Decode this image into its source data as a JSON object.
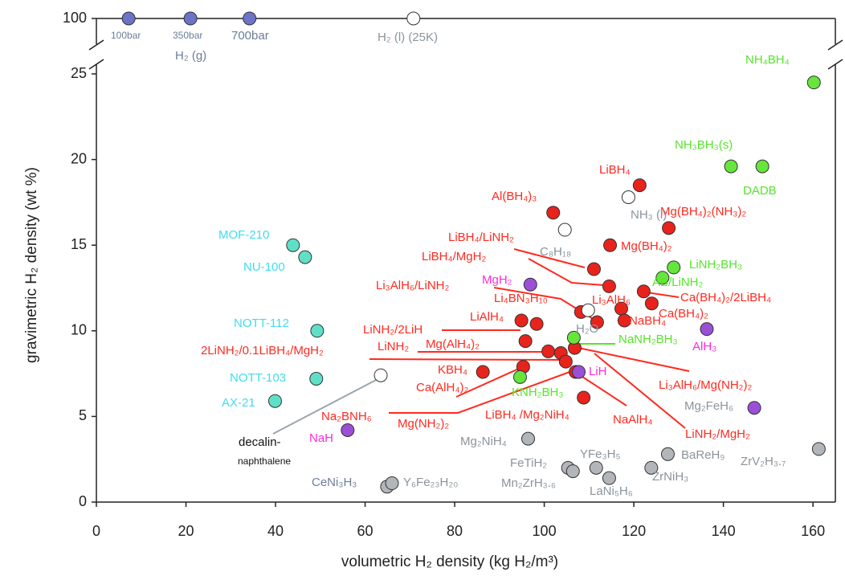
{
  "chart_data": {
    "type": "scatter",
    "xlabel": "volumetric H₂ density (kg H₂/m³)",
    "ylabel": "gravimetric H₂ density (wt %)",
    "xlim": [
      0,
      165
    ],
    "ylim": [
      0,
      100
    ],
    "ybreak": [
      25,
      100
    ],
    "xticks": [
      0,
      20,
      40,
      60,
      80,
      100,
      120,
      140,
      160
    ],
    "yticks": [
      0,
      5,
      10,
      15,
      20,
      25,
      100
    ],
    "series": [
      {
        "color": "#e8231c",
        "x": [
          102,
          121.3,
          127.8,
          114.7,
          111.1,
          114.5,
          122.2,
          124,
          117.2,
          111.8,
          117.9,
          108.2,
          94.9,
          98.3,
          95.8,
          100.9,
          103.7,
          104.8,
          106.8,
          95.3,
          86.3,
          107,
          108.8
        ],
        "values": [
          16.9,
          18.5,
          16,
          15,
          13.6,
          12.6,
          12.3,
          11.6,
          11.3,
          10.5,
          10.6,
          11.1,
          10.6,
          10.4,
          9.4,
          8.8,
          8.7,
          8.2,
          9,
          7.9,
          7.6,
          7.6,
          6.1
        ]
      },
      {
        "color": "#66e63a",
        "x": [
          160.2,
          141.7,
          148.7,
          128.9,
          126.4,
          106.6,
          94.6
        ],
        "values": [
          24.5,
          19.6,
          19.6,
          13.7,
          13.1,
          9.6,
          7.3
        ]
      },
      {
        "color": "#5fe0c6",
        "x": [
          43.9,
          46.6,
          49.3,
          49.1,
          39.9
        ],
        "values": [
          15,
          14.3,
          10,
          7.2,
          5.9
        ]
      },
      {
        "color": "#9b4fd6",
        "x": [
          96.9,
          136.3,
          107.7,
          146.9,
          56.1
        ],
        "values": [
          12.7,
          10.1,
          7.6,
          5.5,
          4.2
        ]
      },
      {
        "color": "#b2b6ba",
        "x": [
          96.4,
          105.3,
          106.4,
          111.6,
          114.5,
          123.9,
          127.6,
          161.3,
          64.9,
          66
        ],
        "values": [
          3.7,
          2,
          1.8,
          2,
          1.4,
          2,
          2.8,
          3.1,
          0.9,
          1.1
        ]
      },
      {
        "color": "#ffffff",
        "x": [
          118.8,
          104.6,
          109.8,
          63.5,
          70.8
        ],
        "values": [
          17.8,
          15.9,
          11.2,
          7.4,
          100
        ]
      },
      {
        "color": "#6c74c8",
        "x": [
          7.2,
          21,
          34.2
        ],
        "values": [
          100,
          100,
          100
        ]
      }
    ],
    "annotations": [
      {
        "text": "Al(BH₄)₃",
        "color": "#ff2a1f"
      },
      {
        "text": "LiBH₄",
        "color": "#ff2a1f"
      },
      {
        "text": "Mg(BH₄)₂(NH₃)₂",
        "color": "#ff2a1f"
      },
      {
        "text": "Mg(BH₄)₂",
        "color": "#ff2a1f"
      },
      {
        "text": "LiBH₄/LiNH₂",
        "color": "#ff2a1f"
      },
      {
        "text": "LiBH₄/MgH₂",
        "color": "#ff2a1f"
      },
      {
        "text": "Li₃AlH₆/LiNH₂",
        "color": "#ff2a1f"
      },
      {
        "text": "Li₄BN₃H₁₀",
        "color": "#ff2a1f"
      },
      {
        "text": "Li₃AlH₆",
        "color": "#ff2a1f"
      },
      {
        "text": "NaBH₄",
        "color": "#ff2a1f"
      },
      {
        "text": "Ca(BH₄)₂/2LiBH₄",
        "color": "#ff2a1f"
      },
      {
        "text": "Ca(BH₄)₂",
        "color": "#ff2a1f"
      },
      {
        "text": "LiAlH₄",
        "color": "#ff2a1f"
      },
      {
        "text": "LiNH₂/2LiH",
        "color": "#ff2a1f"
      },
      {
        "text": "2LiNH₂/0.1LiBH₄/MgH₂",
        "color": "#ff2a1f"
      },
      {
        "text": "LiNH₂",
        "color": "#ff2a1f"
      },
      {
        "text": "Mg(AlH₄)₂",
        "color": "#ff2a1f"
      },
      {
        "text": "KBH₄",
        "color": "#ff2a1f"
      },
      {
        "text": "Ca(AlH₄)₂",
        "color": "#ff2a1f"
      },
      {
        "text": "Na₂BNH₆",
        "color": "#ff2a1f"
      },
      {
        "text": "Mg(NH₂)₂",
        "color": "#ff2a1f"
      },
      {
        "text": "LiBH₄ /Mg₂NiH₄",
        "color": "#ff2a1f"
      },
      {
        "text": "NaAlH₄",
        "color": "#ff2a1f"
      },
      {
        "text": "Li₃AlH₆/Mg(NH₂)₂",
        "color": "#ff2a1f"
      },
      {
        "text": "LiNH₂/MgH₂",
        "color": "#ff2a1f"
      },
      {
        "text": "NH₄BH₄",
        "color": "#55e52a"
      },
      {
        "text": "NH₃BH₃(s)",
        "color": "#55e52a"
      },
      {
        "text": "DADB",
        "color": "#55e52a"
      },
      {
        "text": "LiNH₂BH₃",
        "color": "#55e52a"
      },
      {
        "text": "AB/LiNH₂",
        "color": "#55e52a"
      },
      {
        "text": "NaNH₂BH₃",
        "color": "#55e52a"
      },
      {
        "text": "KNH₂BH₃",
        "color": "#55e52a"
      },
      {
        "text": "MOF-210",
        "color": "#3fdcf0"
      },
      {
        "text": "NU-100",
        "color": "#3fdcf0"
      },
      {
        "text": "NOTT-112",
        "color": "#3fdcf0"
      },
      {
        "text": "NOTT-103",
        "color": "#3fdcf0"
      },
      {
        "text": "AX-21",
        "color": "#3fdcf0"
      },
      {
        "text": "MgH₂",
        "color": "#ff2ad8"
      },
      {
        "text": "AlH₃",
        "color": "#ff2ad8"
      },
      {
        "text": "LiH",
        "color": "#ff2ad8"
      },
      {
        "text": "NaH",
        "color": "#ff2ad8"
      },
      {
        "text": "C₈H₁₈",
        "color": "#8a949c"
      },
      {
        "text": "NH₃ (l)",
        "color": "#8a949c"
      },
      {
        "text": "H₂O",
        "color": "#8a949c"
      },
      {
        "text": "Mg₂FeH₆",
        "color": "#8a949c"
      },
      {
        "text": "Mg₂NiH₄",
        "color": "#8a949c"
      },
      {
        "text": "FeTiH₂",
        "color": "#8a949c"
      },
      {
        "text": "YFe₃H₅",
        "color": "#8a949c"
      },
      {
        "text": "Mn₂ZrH₃.₆",
        "color": "#8a949c"
      },
      {
        "text": "LaNi₅H₆",
        "color": "#8a949c"
      },
      {
        "text": "ZrNiH₃",
        "color": "#8a949c"
      },
      {
        "text": "BaReH₉",
        "color": "#8a949c"
      },
      {
        "text": "ZrV₂H₃.₇",
        "color": "#8a949c"
      },
      {
        "text": "CeNi₃H₃",
        "color": "#6b7d99"
      },
      {
        "text": "Y₆Fe₂₃H₂₀",
        "color": "#8a949c"
      },
      {
        "text": "decalin-",
        "color": "#111111"
      },
      {
        "text": "naphthalene",
        "color": "#111111"
      },
      {
        "text": "100bar",
        "color": "#6b7d99"
      },
      {
        "text": "350bar",
        "color": "#6b7d99"
      },
      {
        "text": "700bar",
        "color": "#6b7d99"
      },
      {
        "text": "H₂ (g)",
        "color": "#6b7d99"
      },
      {
        "text": "H₂ (l) (25K)",
        "color": "#8a949c"
      }
    ]
  }
}
